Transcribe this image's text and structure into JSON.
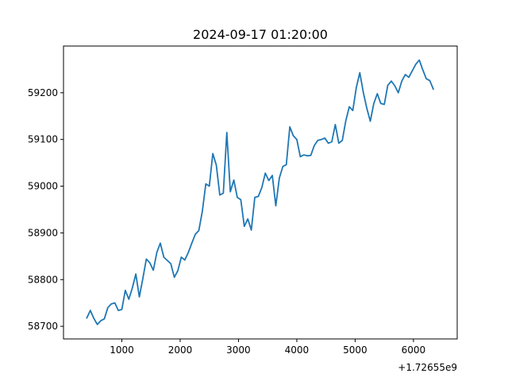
{
  "chart_data": {
    "type": "line",
    "title": "2024-09-17 01:20:00",
    "xlabel": "",
    "ylabel": "",
    "x_offset_label": "+1.72655e9",
    "xlim": [
      0,
      6750
    ],
    "ylim": [
      58673,
      59300
    ],
    "xticks": [
      1000,
      2000,
      3000,
      4000,
      5000,
      6000
    ],
    "yticks": [
      58700,
      58800,
      58900,
      59000,
      59100,
      59200
    ],
    "grid": false,
    "legend": "none",
    "series": [
      {
        "color": "#1f77b4",
        "x": [
          400,
          460,
          520,
          580,
          640,
          700,
          760,
          820,
          880,
          940,
          1000,
          1060,
          1120,
          1180,
          1240,
          1300,
          1360,
          1420,
          1480,
          1540,
          1600,
          1660,
          1720,
          1780,
          1840,
          1900,
          1960,
          2020,
          2080,
          2140,
          2200,
          2260,
          2320,
          2380,
          2440,
          2500,
          2560,
          2620,
          2680,
          2740,
          2800,
          2860,
          2920,
          2980,
          3040,
          3100,
          3160,
          3220,
          3280,
          3340,
          3400,
          3460,
          3520,
          3580,
          3640,
          3700,
          3760,
          3820,
          3880,
          3940,
          4000,
          4060,
          4120,
          4180,
          4240,
          4300,
          4360,
          4420,
          4480,
          4540,
          4600,
          4660,
          4720,
          4780,
          4840,
          4900,
          4960,
          5020,
          5080,
          5140,
          5200,
          5260,
          5320,
          5380,
          5440,
          5500,
          5560,
          5620,
          5680,
          5740,
          5800,
          5860,
          5920,
          5980,
          6040,
          6100,
          6160,
          6220,
          6280,
          6340
        ],
        "y": [
          58718,
          58734,
          58717,
          58704,
          58712,
          58716,
          58740,
          58748,
          58750,
          58734,
          58736,
          58777,
          58758,
          58782,
          58812,
          58763,
          58802,
          58844,
          58836,
          58820,
          58858,
          58878,
          58848,
          58841,
          58834,
          58805,
          58819,
          58848,
          58842,
          58858,
          58878,
          58897,
          58905,
          58946,
          59005,
          59000,
          59070,
          59045,
          58981,
          58985,
          59115,
          58988,
          59013,
          58976,
          58971,
          58914,
          58930,
          58906,
          58976,
          58978,
          58997,
          59028,
          59012,
          59023,
          58958,
          59017,
          59042,
          59046,
          59127,
          59108,
          59100,
          59063,
          59067,
          59065,
          59066,
          59087,
          59098,
          59100,
          59103,
          59092,
          59095,
          59132,
          59092,
          59098,
          59140,
          59170,
          59162,
          59211,
          59243,
          59201,
          59167,
          59139,
          59177,
          59198,
          59177,
          59175,
          59216,
          59225,
          59215,
          59200,
          59225,
          59239,
          59233,
          59247,
          59261,
          59270,
          59249,
          59230,
          59226,
          59208
        ]
      }
    ]
  }
}
